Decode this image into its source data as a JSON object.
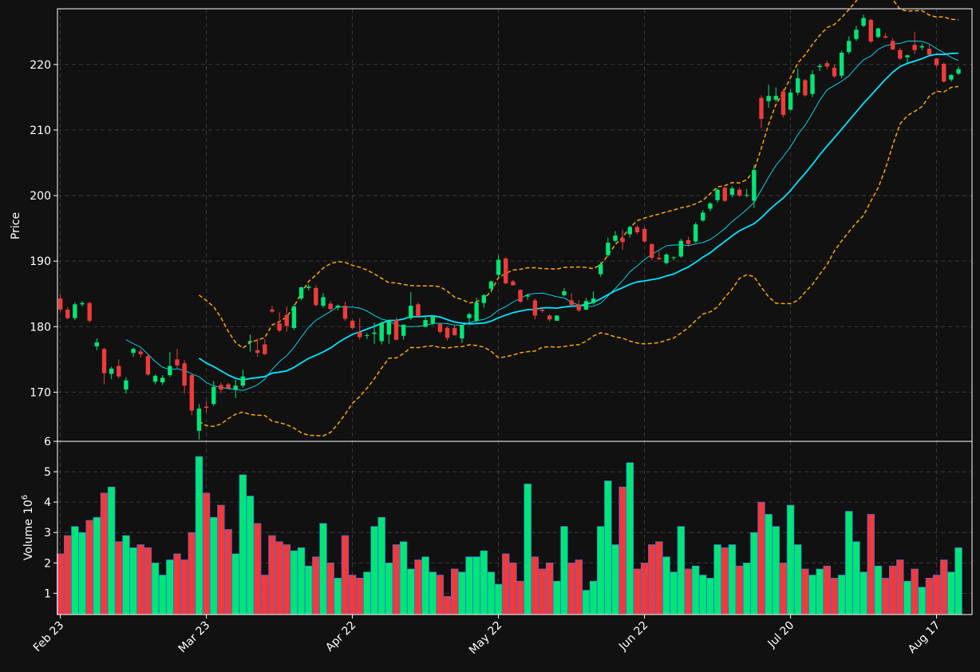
{
  "colors": {
    "background": "#111111",
    "up": "#00e676",
    "down": "#ef3b3b",
    "volume_edge": "#3a6ff0",
    "ma_fast": "#00e5ff",
    "ma_slow": "#00e5ff",
    "bollinger": "#ffa500",
    "grid": "#3a3a3a",
    "axis": "#ffffff"
  },
  "chart_data": {
    "type": "candlestick",
    "title": "",
    "price_axis": {
      "label": "Price",
      "ylim": [
        162.5,
        228.5
      ],
      "ticks": [
        170,
        180,
        190,
        200,
        210,
        220
      ]
    },
    "volume_axis": {
      "label": "Volume",
      "unit": "10",
      "exp": "6",
      "ylim": [
        0.3,
        6.0
      ],
      "ticks": [
        1,
        2,
        3,
        4,
        5,
        6
      ]
    },
    "x_axis": {
      "tick_labels": [
        "Feb 23",
        "Mar 23",
        "Apr 22",
        "May 22",
        "Jun 22",
        "Jul 20",
        "Aug 17"
      ],
      "tick_indices": [
        0,
        20,
        40,
        60,
        80,
        100,
        120
      ]
    },
    "grid": true,
    "candles": [
      [
        184.3,
        185.0,
        182.3,
        182.6,
        2.3
      ],
      [
        182.6,
        183.0,
        181.1,
        181.3,
        2.9
      ],
      [
        181.3,
        183.7,
        181.0,
        183.4,
        3.2
      ],
      [
        183.4,
        183.9,
        183.1,
        183.6,
        3.0
      ],
      [
        183.6,
        183.8,
        180.6,
        180.9,
        3.4
      ],
      [
        177.0,
        178.2,
        176.4,
        177.6,
        3.5
      ],
      [
        176.6,
        176.8,
        171.2,
        172.9,
        4.3
      ],
      [
        172.8,
        173.9,
        172.0,
        173.6,
        4.5
      ],
      [
        174.0,
        175.0,
        172.1,
        172.4,
        2.7
      ],
      [
        170.4,
        172.3,
        169.8,
        171.8,
        2.9
      ],
      [
        176.0,
        176.8,
        175.4,
        176.6,
        2.5
      ],
      [
        176.2,
        176.6,
        175.3,
        175.8,
        2.6
      ],
      [
        175.5,
        175.8,
        172.5,
        172.7,
        2.5
      ],
      [
        171.6,
        172.7,
        171.2,
        172.5,
        2.0
      ],
      [
        171.5,
        172.6,
        171.1,
        172.2,
        1.6
      ],
      [
        172.6,
        176.1,
        172.3,
        174.0,
        2.1
      ],
      [
        175.0,
        176.6,
        173.6,
        174.1,
        2.3
      ],
      [
        174.4,
        174.9,
        169.8,
        171.0,
        2.1
      ],
      [
        172.6,
        172.8,
        166.5,
        167.2,
        3.0
      ],
      [
        164.1,
        168.2,
        162.8,
        167.5,
        5.5
      ],
      [
        167.8,
        168.7,
        166.9,
        167.6,
        4.3
      ],
      [
        168.2,
        171.7,
        167.9,
        170.8,
        3.5
      ],
      [
        171.1,
        171.5,
        169.8,
        170.4,
        3.9
      ],
      [
        171.2,
        171.4,
        170.4,
        170.6,
        3.1
      ],
      [
        170.4,
        171.9,
        169.1,
        171.0,
        2.3
      ],
      [
        171.0,
        173.4,
        170.7,
        172.4,
        4.9
      ],
      [
        177.6,
        178.8,
        176.2,
        177.8,
        4.2
      ],
      [
        176.4,
        178.2,
        175.4,
        176.0,
        3.3
      ],
      [
        177.3,
        178.1,
        175.7,
        175.8,
        1.6
      ],
      [
        182.6,
        183.2,
        182.1,
        182.3,
        2.9
      ],
      [
        180.5,
        182.2,
        179.2,
        179.4,
        2.7
      ],
      [
        181.8,
        183.1,
        179.2,
        180.1,
        2.6
      ],
      [
        179.8,
        183.4,
        179.5,
        183.1,
        2.4
      ],
      [
        184.3,
        186.1,
        184.0,
        186.0,
        2.5
      ],
      [
        185.9,
        186.5,
        185.5,
        186.1,
        1.9
      ],
      [
        185.9,
        186.3,
        183.1,
        183.3,
        2.2
      ],
      [
        183.2,
        185.1,
        182.9,
        184.5,
        3.3
      ],
      [
        183.5,
        183.9,
        182.2,
        182.7,
        2.0
      ],
      [
        182.9,
        183.4,
        182.5,
        183.2,
        1.5
      ],
      [
        183.2,
        183.8,
        180.9,
        181.2,
        2.9
      ],
      [
        180.9,
        181.1,
        179.6,
        179.8,
        1.6
      ],
      [
        179.2,
        181.3,
        178.0,
        178.4,
        1.5
      ],
      [
        178.6,
        179.0,
        178.1,
        178.7,
        1.7
      ],
      [
        178.9,
        180.6,
        177.4,
        179.1,
        3.2
      ],
      [
        177.8,
        180.8,
        177.3,
        180.6,
        3.5
      ],
      [
        178.8,
        181.1,
        177.4,
        180.8,
        2.0
      ],
      [
        181.0,
        181.4,
        177.9,
        178.0,
        2.6
      ],
      [
        178.6,
        180.3,
        178.0,
        180.3,
        2.7
      ],
      [
        181.3,
        185.3,
        181.0,
        183.2,
        1.8
      ],
      [
        183.4,
        183.7,
        181.3,
        181.6,
        2.1
      ],
      [
        180.0,
        181.6,
        179.9,
        181.0,
        2.2
      ],
      [
        180.5,
        181.7,
        180.2,
        181.5,
        1.7
      ],
      [
        180.4,
        180.6,
        179.0,
        179.2,
        1.6
      ],
      [
        179.8,
        180.0,
        177.9,
        178.3,
        0.9
      ],
      [
        179.8,
        180.3,
        178.6,
        178.7,
        1.8
      ],
      [
        178.2,
        180.3,
        177.5,
        180.2,
        1.7
      ],
      [
        181.3,
        182.1,
        180.5,
        181.9,
        2.2
      ],
      [
        180.9,
        184.4,
        180.6,
        183.7,
        2.2
      ],
      [
        183.6,
        185.0,
        182.9,
        184.8,
        2.4
      ],
      [
        185.8,
        187.0,
        185.2,
        186.9,
        1.7
      ],
      [
        187.9,
        190.9,
        187.6,
        190.2,
        1.3
      ],
      [
        190.4,
        190.6,
        186.5,
        186.6,
        2.3
      ],
      [
        186.9,
        187.1,
        186.3,
        186.3,
        2.0
      ],
      [
        185.6,
        185.7,
        183.6,
        183.8,
        1.4
      ],
      [
        184.6,
        185.0,
        184.1,
        184.8,
        4.6
      ],
      [
        184.0,
        184.3,
        181.1,
        181.7,
        2.2
      ],
      [
        182.6,
        182.8,
        182.1,
        182.4,
        1.8
      ],
      [
        181.7,
        181.9,
        180.8,
        181.1,
        2.0
      ],
      [
        180.9,
        181.7,
        180.9,
        181.7,
        1.4
      ],
      [
        184.8,
        185.9,
        184.6,
        185.4,
        3.2
      ],
      [
        184.0,
        185.1,
        183.2,
        183.3,
        2.0
      ],
      [
        183.4,
        184.1,
        182.2,
        182.5,
        2.1
      ],
      [
        182.6,
        184.4,
        182.5,
        183.9,
        1.1
      ],
      [
        183.6,
        185.4,
        183.4,
        184.3,
        1.4
      ],
      [
        188.0,
        189.9,
        187.6,
        189.5,
        3.2
      ],
      [
        190.9,
        193.6,
        190.6,
        192.8,
        4.7
      ],
      [
        193.1,
        194.6,
        192.9,
        193.9,
        2.6
      ],
      [
        193.5,
        194.8,
        191.7,
        192.9,
        4.5
      ],
      [
        194.1,
        195.4,
        193.6,
        195.2,
        5.3
      ],
      [
        195.2,
        195.5,
        194.1,
        194.4,
        1.8
      ],
      [
        194.9,
        195.2,
        192.8,
        193.0,
        2.0
      ],
      [
        192.6,
        192.7,
        190.1,
        190.5,
        2.6
      ],
      [
        190.5,
        191.5,
        190.1,
        190.3,
        2.7
      ],
      [
        189.7,
        191.2,
        189.5,
        191.0,
        2.2
      ],
      [
        190.5,
        190.7,
        190.1,
        190.6,
        1.7
      ],
      [
        190.7,
        193.4,
        190.5,
        193.1,
        3.2
      ],
      [
        193.2,
        193.7,
        192.2,
        192.6,
        1.8
      ],
      [
        193.0,
        195.9,
        192.8,
        195.6,
        1.9
      ],
      [
        196.2,
        197.8,
        196.0,
        197.4,
        1.6
      ],
      [
        198.0,
        199.0,
        197.6,
        198.8,
        1.5
      ],
      [
        199.3,
        201.1,
        198.9,
        200.9,
        2.6
      ],
      [
        201.2,
        201.3,
        199.0,
        199.2,
        2.5
      ],
      [
        200.1,
        201.4,
        199.7,
        201.1,
        2.6
      ],
      [
        200.9,
        201.2,
        199.8,
        200.0,
        1.9
      ],
      [
        200.1,
        201.0,
        199.7,
        200.1,
        2.0
      ],
      [
        199.2,
        204.7,
        198.1,
        203.9,
        3.0
      ],
      [
        214.9,
        215.3,
        210.3,
        211.7,
        4.0
      ],
      [
        214.4,
        216.9,
        213.4,
        215.2,
        3.6
      ],
      [
        214.6,
        216.5,
        214.3,
        215.2,
        3.2
      ],
      [
        215.9,
        216.3,
        211.9,
        212.3,
        2.0
      ],
      [
        213.1,
        216.2,
        213.0,
        215.7,
        3.9
      ],
      [
        215.7,
        219.4,
        215.3,
        217.9,
        2.6
      ],
      [
        217.6,
        217.8,
        215.1,
        215.3,
        1.8
      ],
      [
        215.5,
        219.1,
        215.0,
        218.5,
        1.6
      ],
      [
        219.6,
        220.1,
        219.0,
        219.8,
        1.8
      ],
      [
        220.2,
        220.6,
        219.3,
        219.7,
        1.9
      ],
      [
        219.5,
        220.0,
        217.9,
        218.2,
        1.5
      ],
      [
        218.3,
        222.1,
        217.9,
        221.8,
        1.6
      ],
      [
        221.9,
        224.3,
        221.6,
        223.6,
        3.7
      ],
      [
        223.9,
        225.9,
        223.6,
        225.3,
        2.7
      ],
      [
        225.9,
        227.6,
        225.7,
        227.1,
        1.7
      ],
      [
        226.8,
        227.0,
        223.3,
        223.5,
        3.6
      ],
      [
        224.2,
        225.6,
        224.0,
        225.5,
        1.9
      ],
      [
        224.3,
        224.8,
        224.0,
        224.1,
        1.5
      ],
      [
        223.6,
        224.0,
        222.2,
        222.3,
        1.9
      ],
      [
        222.2,
        222.5,
        220.7,
        220.9,
        2.1
      ],
      [
        221.1,
        221.5,
        220.2,
        221.4,
        1.4
      ],
      [
        223.0,
        225.0,
        221.6,
        222.2,
        1.8
      ],
      [
        222.6,
        223.2,
        222.2,
        222.8,
        1.2
      ],
      [
        222.4,
        223.0,
        221.4,
        221.5,
        1.5
      ],
      [
        220.9,
        221.0,
        219.6,
        219.9,
        1.6
      ],
      [
        220.1,
        220.3,
        217.2,
        217.4,
        2.1
      ],
      [
        217.7,
        218.5,
        217.4,
        218.4,
        1.7
      ],
      [
        218.6,
        219.7,
        218.4,
        219.3,
        2.5
      ]
    ],
    "series": [
      {
        "name": "",
        "type": "ma",
        "window": 10,
        "style": "thin"
      },
      {
        "name": "",
        "type": "ma",
        "window": 20,
        "style": "thick"
      },
      {
        "name": "",
        "type": "bollinger",
        "window": 20,
        "k": 2,
        "style": "dashed"
      }
    ]
  }
}
